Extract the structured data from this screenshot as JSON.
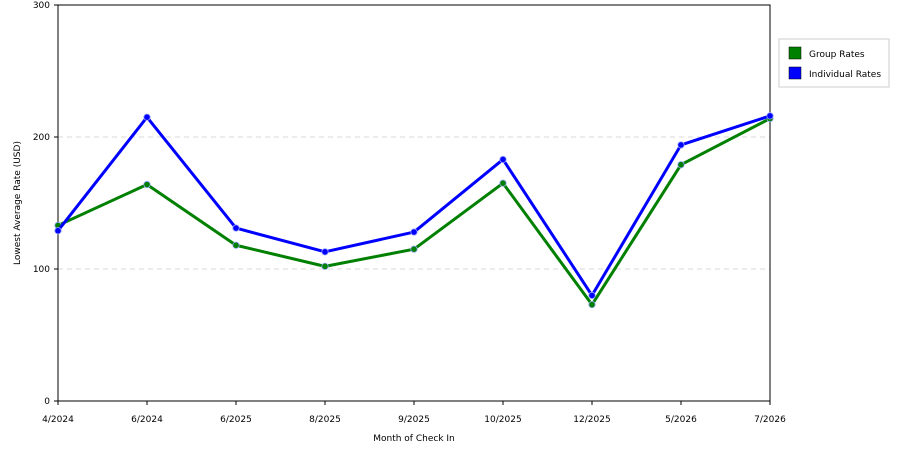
{
  "chart_data": {
    "type": "line",
    "xlabel": "Month of Check In",
    "ylabel": "Lowest Average Rate (USD)",
    "categories": [
      "4/2024",
      "6/2024",
      "6/2025",
      "8/2025",
      "9/2025",
      "10/2025",
      "12/2025",
      "5/2026",
      "7/2026"
    ],
    "ylim": [
      0,
      300
    ],
    "yticks": [
      0,
      100,
      200,
      300
    ],
    "grid": "horizontal dashed",
    "legend_position": "right",
    "series": [
      {
        "name": "Group Rates",
        "color": "#008000",
        "values": [
          133,
          164,
          118,
          102,
          115,
          165,
          73,
          179,
          214
        ]
      },
      {
        "name": "Individual Rates",
        "color": "#0000ff",
        "values": [
          129,
          215,
          131,
          113,
          128,
          183,
          80,
          194,
          216
        ]
      }
    ]
  }
}
